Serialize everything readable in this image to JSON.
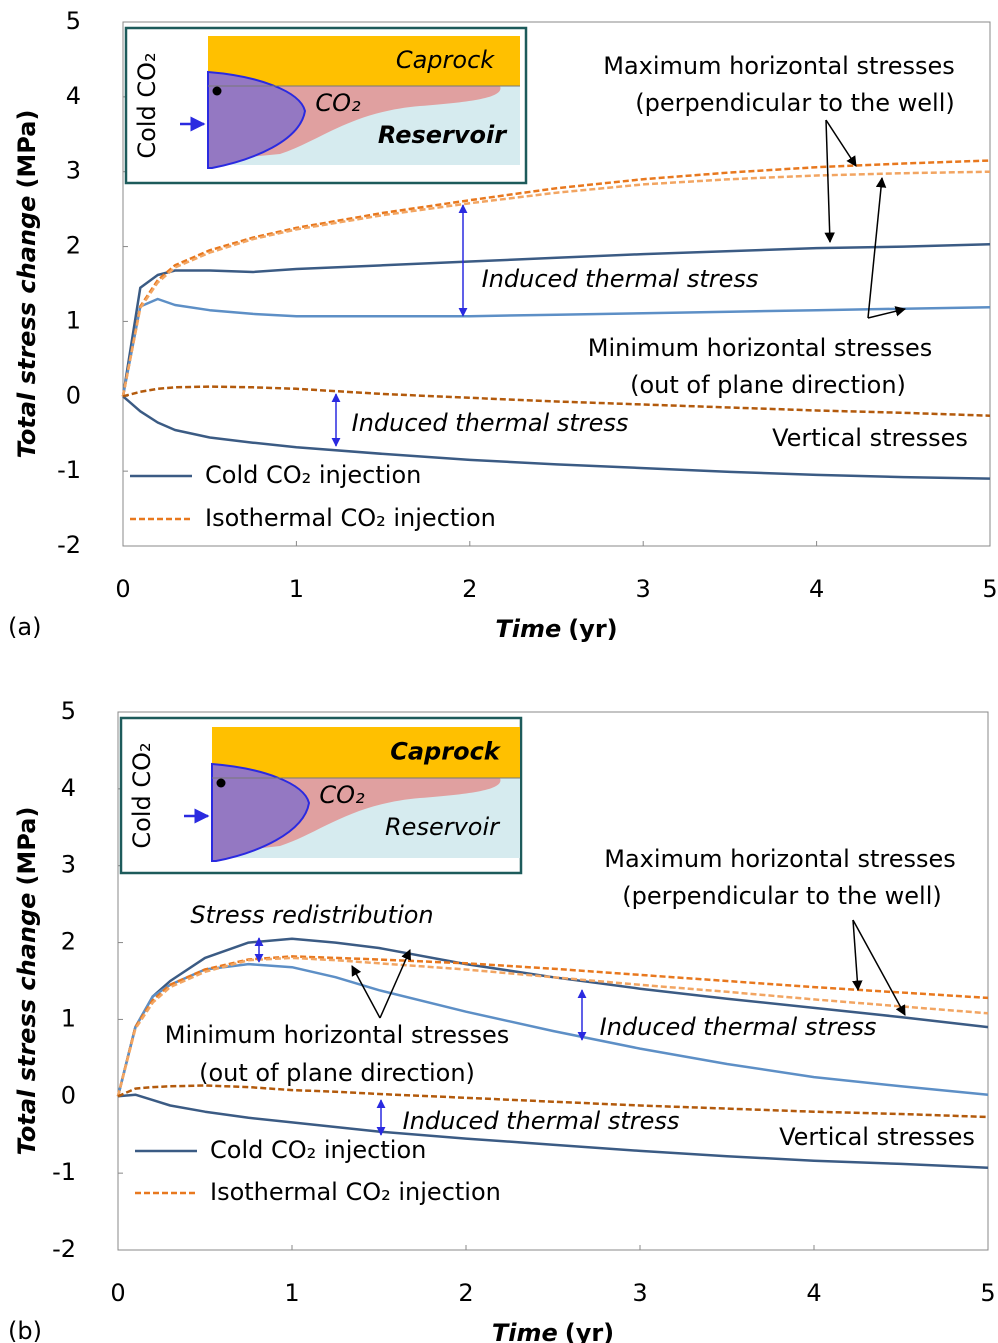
{
  "chart_data": [
    {
      "type": "line",
      "panel_label": "(a)",
      "xlabel": [
        "Time",
        "(yr)"
      ],
      "ylabel": [
        "Total stress change",
        "(MPa)"
      ],
      "x": [
        0,
        0.1,
        0.2,
        0.3,
        0.5,
        0.75,
        1,
        1.5,
        2,
        2.5,
        3,
        3.5,
        4,
        4.5,
        5
      ],
      "xlim": [
        0,
        5
      ],
      "ylim": [
        -2,
        5
      ],
      "xticks": [
        0,
        1,
        2,
        3,
        4,
        5
      ],
      "yticks": [
        -2,
        -1,
        0,
        1,
        2,
        3,
        4,
        5
      ],
      "series": [
        {
          "name": "Cold CO₂ injection",
          "color": "#3b5b84",
          "dash": false,
          "curves": [
            {
              "color": "#3b5b84",
              "values": [
                0,
                1.45,
                1.62,
                1.68,
                1.68,
                1.66,
                1.7,
                1.75,
                1.8,
                1.85,
                1.9,
                1.94,
                1.98,
                2.0,
                2.03
              ]
            },
            {
              "color": "#5d8fc6",
              "values": [
                0,
                1.2,
                1.3,
                1.22,
                1.15,
                1.1,
                1.07,
                1.07,
                1.07,
                1.09,
                1.11,
                1.13,
                1.15,
                1.17,
                1.19
              ]
            },
            {
              "color": "#3b5b84",
              "values": [
                0,
                -0.2,
                -0.35,
                -0.45,
                -0.55,
                -0.62,
                -0.68,
                -0.77,
                -0.85,
                -0.91,
                -0.96,
                -1.01,
                -1.05,
                -1.08,
                -1.1
              ]
            }
          ]
        },
        {
          "name": "Isothermal CO₂ injection",
          "color": "#e8781e",
          "dash": true,
          "curves": [
            {
              "color": "#e8781e",
              "values": [
                0,
                1.2,
                1.55,
                1.75,
                1.95,
                2.12,
                2.25,
                2.45,
                2.62,
                2.78,
                2.9,
                2.99,
                3.06,
                3.11,
                3.15
              ]
            },
            {
              "color": "#f2a562",
              "values": [
                0,
                1.18,
                1.52,
                1.72,
                1.92,
                2.1,
                2.23,
                2.42,
                2.58,
                2.72,
                2.83,
                2.9,
                2.95,
                2.98,
                3.0
              ]
            },
            {
              "color": "#b35a0c",
              "values": [
                0,
                0.06,
                0.1,
                0.12,
                0.13,
                0.12,
                0.1,
                0.03,
                -0.02,
                -0.07,
                -0.11,
                -0.15,
                -0.19,
                -0.22,
                -0.26
              ]
            }
          ]
        }
      ],
      "annotations": [
        "Maximum horizontal stresses",
        "(perpendicular to the well)",
        "Induced thermal stress",
        "Minimum horizontal stresses",
        "(out of plane direction)",
        "Induced thermal stress",
        "Vertical stresses"
      ],
      "inset": {
        "caprock": "Caprock",
        "plume": "CO₂",
        "reservoir": "Reservoir",
        "injection": "Cold CO₂"
      }
    },
    {
      "type": "line",
      "panel_label": "(b)",
      "xlabel": [
        "Time",
        "(yr)"
      ],
      "ylabel": [
        "Total stress change",
        "(MPa)"
      ],
      "x": [
        0,
        0.1,
        0.2,
        0.3,
        0.5,
        0.75,
        1,
        1.25,
        1.5,
        2,
        2.5,
        3,
        3.5,
        4,
        4.5,
        5
      ],
      "xlim": [
        0,
        5
      ],
      "ylim": [
        -2,
        5
      ],
      "xticks": [
        0,
        1,
        2,
        3,
        4,
        5
      ],
      "yticks": [
        -2,
        -1,
        0,
        1,
        2,
        3,
        4,
        5
      ],
      "series": [
        {
          "name": "Cold CO₂ injection",
          "color": "#3b5b84",
          "dash": false,
          "curves": [
            {
              "color": "#3b5b84",
              "values": [
                0,
                0.9,
                1.3,
                1.5,
                1.8,
                2.0,
                2.05,
                2.0,
                1.93,
                1.72,
                1.55,
                1.4,
                1.27,
                1.15,
                1.03,
                0.9
              ]
            },
            {
              "color": "#5d8fc6",
              "values": [
                0,
                0.9,
                1.3,
                1.45,
                1.65,
                1.72,
                1.68,
                1.55,
                1.38,
                1.1,
                0.85,
                0.62,
                0.42,
                0.25,
                0.13,
                0.02
              ]
            },
            {
              "color": "#3b5b84",
              "values": [
                0,
                0.02,
                -0.05,
                -0.12,
                -0.2,
                -0.28,
                -0.34,
                -0.4,
                -0.46,
                -0.55,
                -0.63,
                -0.71,
                -0.78,
                -0.84,
                -0.88,
                -0.93
              ]
            }
          ]
        },
        {
          "name": "Isothermal CO₂ injection",
          "color": "#e8781e",
          "dash": true,
          "curves": [
            {
              "color": "#e8781e",
              "values": [
                0,
                0.9,
                1.25,
                1.45,
                1.65,
                1.78,
                1.82,
                1.8,
                1.78,
                1.73,
                1.66,
                1.58,
                1.5,
                1.42,
                1.35,
                1.28
              ]
            },
            {
              "color": "#f2a562",
              "values": [
                0,
                0.88,
                1.22,
                1.42,
                1.62,
                1.77,
                1.8,
                1.77,
                1.73,
                1.65,
                1.55,
                1.45,
                1.36,
                1.26,
                1.17,
                1.08
              ]
            },
            {
              "color": "#b35a0c",
              "values": [
                0,
                0.1,
                0.12,
                0.13,
                0.14,
                0.12,
                0.08,
                0.06,
                0.03,
                -0.02,
                -0.07,
                -0.12,
                -0.16,
                -0.2,
                -0.23,
                -0.27
              ]
            }
          ]
        }
      ],
      "annotations": [
        "Stress redistribution",
        "Maximum horizontal stresses",
        "(perpendicular to the well)",
        "Minimum horizontal stresses",
        "(out of plane direction)",
        "Induced thermal stress",
        "Induced thermal stress",
        "Vertical stresses"
      ],
      "inset": {
        "caprock": "Caprock",
        "plume": "CO₂",
        "reservoir": "Reservoir",
        "injection": "Cold CO₂"
      }
    }
  ]
}
